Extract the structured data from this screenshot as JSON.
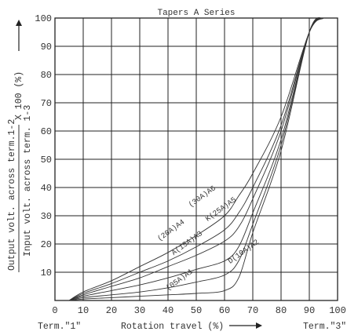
{
  "chart_data": {
    "type": "line",
    "title": "Tapers A Series",
    "ylabel_top": "Output volt. across term.1-2",
    "ylabel_bottom": "Input volt. across term. 1-3",
    "ylabel_factor": "X 100 (%)",
    "xlabel": "Rotation travel (%)",
    "x_left_label": "Term.\"1\"",
    "x_right_label": "Term.\"3\"",
    "xlim": [
      0,
      100
    ],
    "ylim": [
      0,
      100
    ],
    "grid": true,
    "x_ticks": [
      0,
      10,
      20,
      30,
      40,
      50,
      60,
      70,
      80,
      90,
      100
    ],
    "y_ticks": [
      10,
      20,
      30,
      40,
      50,
      60,
      70,
      80,
      90,
      100
    ],
    "series": [
      {
        "name": "(30A)A6",
        "points": [
          [
            5,
            0
          ],
          [
            10,
            3
          ],
          [
            20,
            7
          ],
          [
            30,
            12
          ],
          [
            40,
            17
          ],
          [
            50,
            23
          ],
          [
            60,
            30
          ],
          [
            65,
            37
          ],
          [
            70,
            45
          ],
          [
            80,
            65
          ],
          [
            90,
            95
          ],
          [
            95,
            100
          ]
        ],
        "label_at": [
          48,
          33
        ]
      },
      {
        "name": "K(25A)A5",
        "points": [
          [
            5,
            0
          ],
          [
            10,
            2.5
          ],
          [
            20,
            6
          ],
          [
            30,
            10
          ],
          [
            40,
            14
          ],
          [
            50,
            19
          ],
          [
            60,
            25
          ],
          [
            65,
            31
          ],
          [
            70,
            40
          ],
          [
            80,
            62
          ],
          [
            90,
            95
          ],
          [
            95,
            100
          ]
        ],
        "label_at": [
          54,
          28
        ]
      },
      {
        "name": "(20A)A4",
        "points": [
          [
            5,
            0
          ],
          [
            10,
            2
          ],
          [
            20,
            5
          ],
          [
            30,
            8
          ],
          [
            40,
            12
          ],
          [
            50,
            16
          ],
          [
            60,
            21
          ],
          [
            65,
            26
          ],
          [
            70,
            36
          ],
          [
            80,
            60
          ],
          [
            90,
            95
          ],
          [
            95,
            100
          ]
        ],
        "label_at": [
          37,
          21
        ]
      },
      {
        "name": "A(15A)A3",
        "points": [
          [
            5,
            0
          ],
          [
            10,
            1.5
          ],
          [
            20,
            3.5
          ],
          [
            30,
            5.5
          ],
          [
            40,
            8
          ],
          [
            50,
            11
          ],
          [
            60,
            14
          ],
          [
            65,
            19
          ],
          [
            70,
            31
          ],
          [
            80,
            57
          ],
          [
            90,
            95
          ],
          [
            95,
            100
          ]
        ],
        "label_at": [
          42,
          16
        ]
      },
      {
        "name": "D(10A)A2",
        "points": [
          [
            5,
            0
          ],
          [
            10,
            1
          ],
          [
            20,
            2
          ],
          [
            30,
            3
          ],
          [
            40,
            4.5
          ],
          [
            50,
            6.5
          ],
          [
            60,
            9
          ],
          [
            65,
            14
          ],
          [
            70,
            27
          ],
          [
            80,
            55
          ],
          [
            90,
            95
          ],
          [
            95,
            100
          ]
        ],
        "label_at": [
          62,
          13
        ]
      },
      {
        "name": "(05A)A1",
        "points": [
          [
            5,
            0
          ],
          [
            10,
            0.5
          ],
          [
            20,
            1
          ],
          [
            30,
            1.5
          ],
          [
            40,
            2
          ],
          [
            50,
            2.5
          ],
          [
            60,
            3.5
          ],
          [
            65,
            8
          ],
          [
            70,
            24
          ],
          [
            80,
            53
          ],
          [
            90,
            95
          ],
          [
            95,
            100
          ]
        ],
        "label_at": [
          40,
          3.5
        ]
      }
    ]
  }
}
